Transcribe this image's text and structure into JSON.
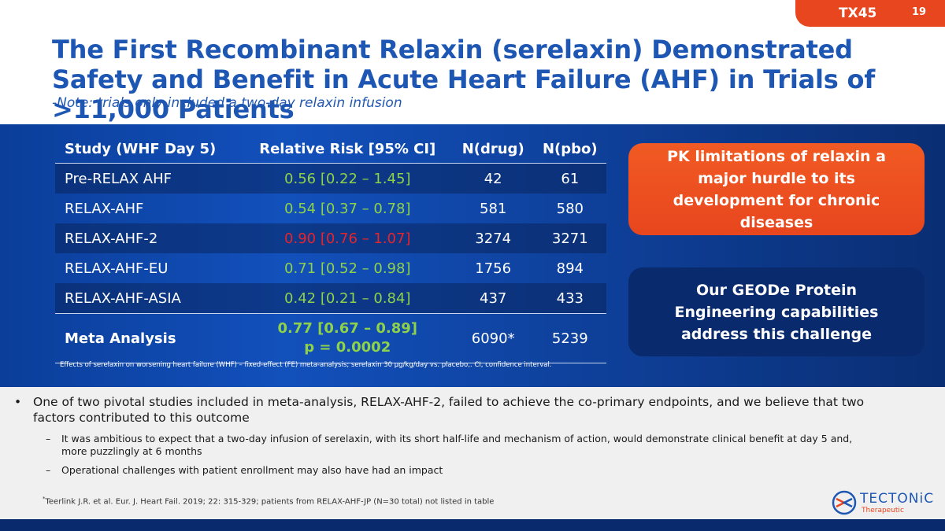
{
  "badge": {
    "code": "TX45",
    "page": "19"
  },
  "title": "The First Recombinant Relaxin (serelaxin) Demonstrated Safety and Benefit in Acute Heart Failure (AHF) in Trials of >11,000 Patients",
  "subtitle": "-Note: trials only included a two-day relaxin infusion",
  "table": {
    "headers": [
      "Study (WHF Day 5)",
      "Relative Risk [95% CI]",
      "N(drug)",
      "N(pbo)"
    ],
    "rows": [
      {
        "study": "Pre-RELAX AHF",
        "rr": "0.56 [0.22 – 1.45]",
        "ndrug": "42",
        "npbo": "61"
      },
      {
        "study": "RELAX-AHF",
        "rr": "0.54 [0.37 – 0.78]",
        "ndrug": "581",
        "npbo": "580"
      },
      {
        "study": "RELAX-AHF-2",
        "rr": "0.90 [0.76 – 1.07]",
        "ndrug": "3274",
        "npbo": "3271"
      },
      {
        "study": "RELAX-AHF-EU",
        "rr": "0.71 [0.52 – 0.98]",
        "ndrug": "1756",
        "npbo": "894"
      },
      {
        "study": "RELAX-AHF-ASIA",
        "rr": "0.42 [0.21 – 0.84]",
        "ndrug": "437",
        "npbo": "433"
      }
    ],
    "meta": {
      "study": "Meta Analysis",
      "rr": "0.77 [0.67 – 0.89]",
      "p": "p = 0.0002",
      "ndrug": "6090*",
      "npbo": "5239"
    },
    "footnote": "Effects of serelaxin on worsening heart failure (WHF) – fixed-effect (FE) meta-analysis; serelaxin 30 μg/kg/day vs. placebo,. CI, confidence interval."
  },
  "callouts": {
    "pk": "PK limitations of relaxin a major hurdle to its development for chronic diseases",
    "geode": "Our GEODe Protein Engineering capabilities address this challenge"
  },
  "bullets": {
    "main": "One of two pivotal studies included in meta-analysis, RELAX-AHF-2, failed to achieve the co-primary endpoints, and we believe that two factors contributed to this outcome",
    "sub1": "It was ambitious to expect that a two-day infusion of serelaxin, with its short half-life and mechanism of action, would demonstrate clinical benefit at day 5 and, more puzzlingly at 6 months",
    "sub2": "Operational challenges with patient enrollment may also have had an impact"
  },
  "reference": {
    "mark": "*",
    "text": "Teerlink J.R. et al. Eur. J. Heart Fail. 2019; 22: 315-329; patients from RELAX-AHF-JP (N=30 total) not listed in table"
  },
  "logo": {
    "name": "TECTONiC",
    "tagline": "Therapeutic"
  },
  "colors": {
    "brand_blue": "#1e57b3",
    "accent_orange": "#e8461e",
    "significant_green": "#8ed24a",
    "nonsignificant_red": "#e8242b"
  }
}
